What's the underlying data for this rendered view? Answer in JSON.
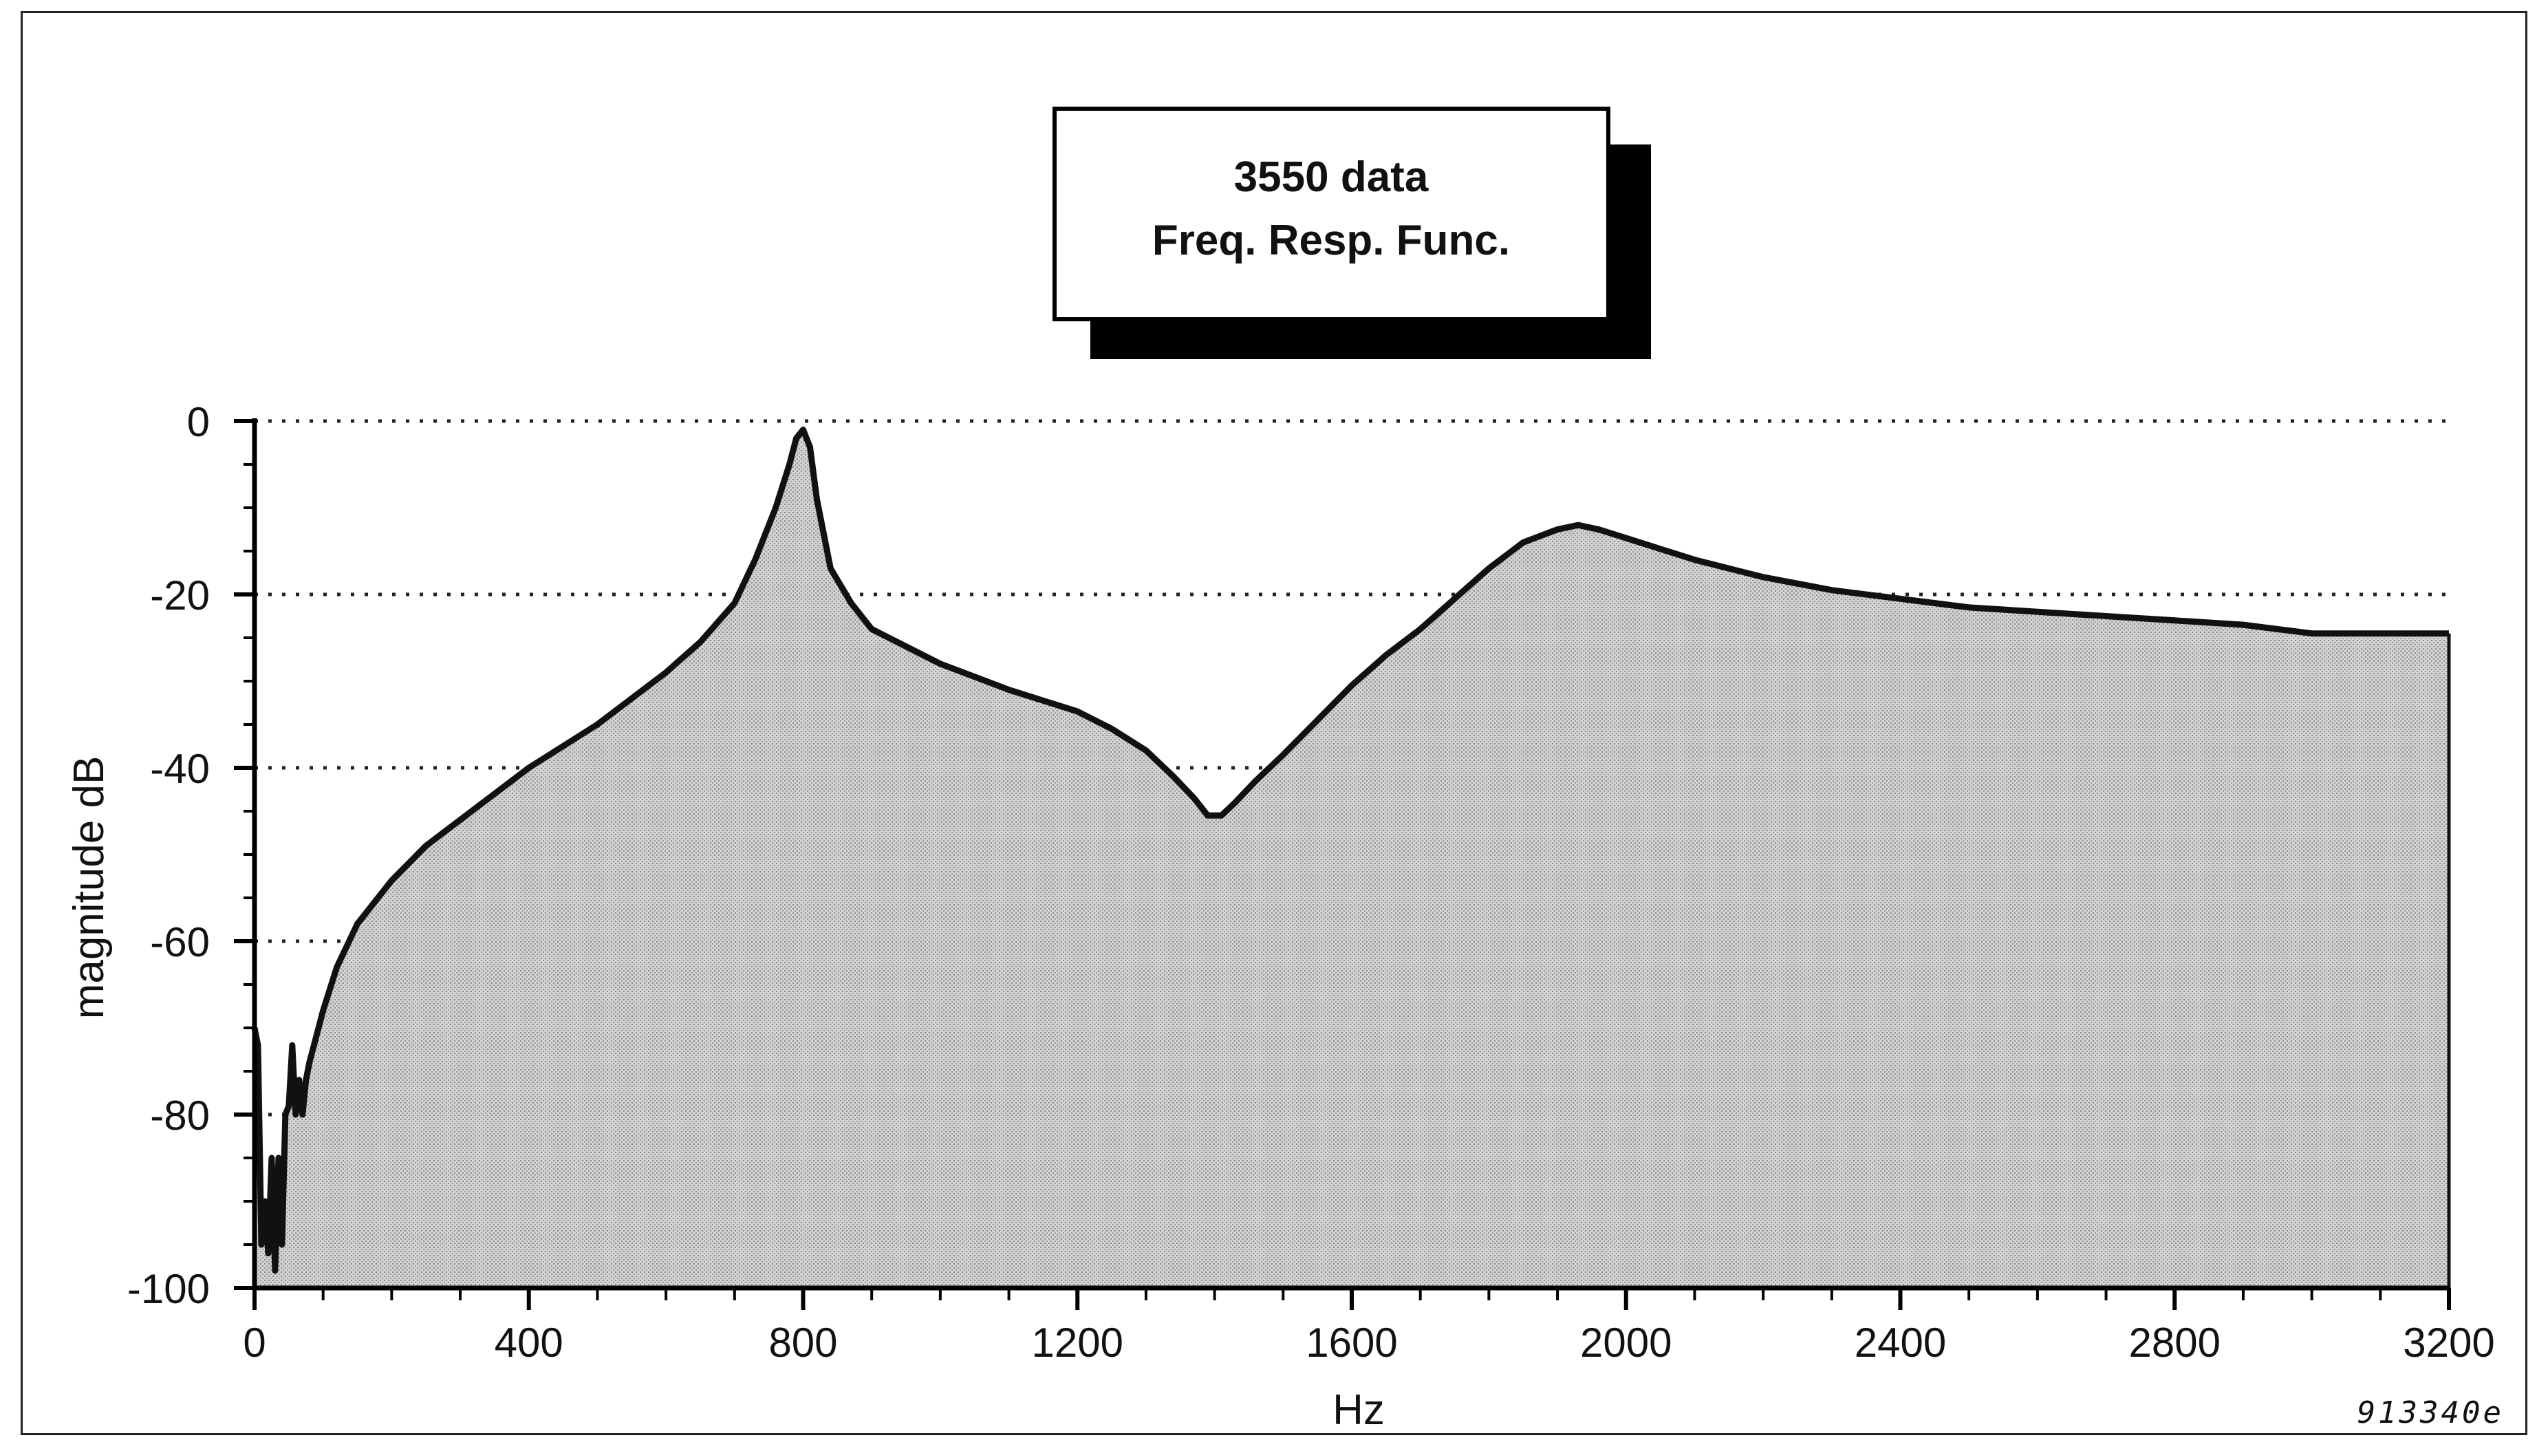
{
  "chart_data": {
    "type": "area",
    "title_lines": [
      "3550 data",
      "Freq. Resp. Func."
    ],
    "xlabel": "Hz",
    "ylabel": "magnitude dB",
    "xlim": [
      0,
      3200
    ],
    "ylim": [
      -100,
      0
    ],
    "x_ticks": [
      0,
      400,
      800,
      1200,
      1600,
      2000,
      2400,
      2800,
      3200
    ],
    "x_tick_labels": [
      "0",
      "400",
      "800",
      "1200",
      "1600",
      "2000",
      "2400",
      "2800",
      "3200"
    ],
    "y_ticks": [
      0,
      -20,
      -40,
      -60,
      -80,
      -100
    ],
    "y_tick_labels": [
      "0",
      "-20",
      "-40",
      "-60",
      "-80",
      "-100"
    ],
    "grid": "horizontal dotted at y ticks",
    "series": [
      {
        "x": [
          0,
          5,
          10,
          15,
          20,
          25,
          30,
          35,
          40,
          45,
          50,
          55,
          60,
          65,
          70,
          75,
          80,
          90,
          100,
          120,
          150,
          200,
          250,
          300,
          350,
          400,
          450,
          500,
          550,
          600,
          650,
          700,
          730,
          760,
          780,
          790,
          800,
          810,
          820,
          840,
          870,
          900,
          1000,
          1100,
          1200,
          1250,
          1300,
          1340,
          1370,
          1390,
          1410,
          1430,
          1460,
          1500,
          1550,
          1600,
          1650,
          1700,
          1750,
          1800,
          1850,
          1900,
          1930,
          1960,
          2000,
          2100,
          2200,
          2300,
          2400,
          2500,
          2600,
          2700,
          2800,
          2900,
          3000,
          3100,
          3200
        ],
        "y": [
          -70,
          -72,
          -95,
          -90,
          -96,
          -85,
          -98,
          -85,
          -95,
          -80,
          -79,
          -72,
          -80,
          -76,
          -80,
          -76,
          -74,
          -71,
          -68,
          -63,
          -58,
          -53,
          -49,
          -46,
          -43,
          -40,
          -37.5,
          -35,
          -32,
          -29,
          -25.5,
          -21,
          -16,
          -10,
          -5,
          -2,
          -1,
          -3,
          -9,
          -17,
          -21,
          -24,
          -28,
          -31,
          -33.5,
          -35.5,
          -38,
          -41,
          -43.5,
          -45.5,
          -45.5,
          -44,
          -41.5,
          -38.5,
          -34.5,
          -30.5,
          -27,
          -24,
          -20.5,
          -17,
          -14,
          -12.5,
          -12,
          -12.5,
          -13.5,
          -16,
          -18,
          -19.5,
          -20.5,
          -21.5,
          -22,
          -22.5,
          -23,
          -23.5,
          -24.5,
          -24.5,
          -24.5
        ]
      }
    ],
    "figure_code": "913340e"
  },
  "colors": {
    "line": "#111111",
    "fill": "#c8c8c8",
    "fill_texture": "#9a9a9a",
    "grid": "#222222",
    "shadow": "#000000"
  }
}
